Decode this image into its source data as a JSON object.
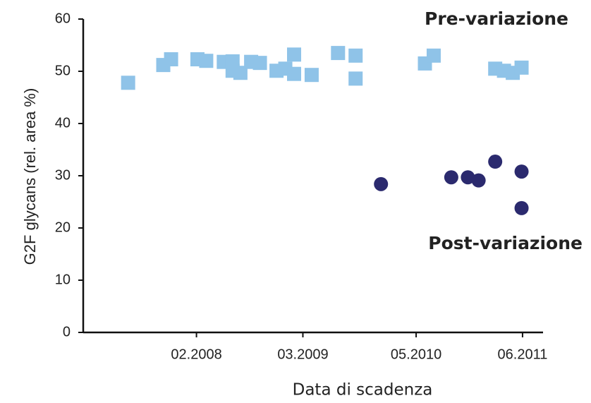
{
  "chart_data": {
    "type": "scatter",
    "x_label": "Data di scadenza",
    "y_label": "G2F glycans (rel. area %)",
    "xlim": [
      2006.92,
      2011.63
    ],
    "ylim": [
      0,
      60
    ],
    "xticks": [
      {
        "value": 2008.08,
        "label": "02.2008"
      },
      {
        "value": 2009.17,
        "label": "03.2009"
      },
      {
        "value": 2010.33,
        "label": "05.2010"
      },
      {
        "value": 2011.42,
        "label": "06.2011"
      }
    ],
    "yticks": [
      0,
      10,
      20,
      30,
      40,
      50,
      60
    ],
    "series": [
      {
        "name": "Pre-variazione",
        "color": "#8fc3e8",
        "marker": "square",
        "label_color": "#1f7bc4",
        "x": [
          2007.38,
          2007.74,
          2007.82,
          2008.09,
          2008.18,
          2008.36,
          2008.45,
          2008.45,
          2008.53,
          2008.64,
          2008.73,
          2008.9,
          2008.99,
          2009.08,
          2009.08,
          2009.26,
          2009.53,
          2009.71,
          2009.71,
          2010.42,
          2010.51,
          2011.14,
          2011.23,
          2011.32,
          2011.41
        ],
        "values": [
          47.8,
          51.2,
          52.3,
          52.3,
          52.0,
          51.8,
          51.9,
          50.1,
          49.7,
          51.8,
          51.6,
          50.1,
          50.5,
          53.2,
          49.5,
          49.3,
          53.5,
          53.0,
          48.6,
          51.5,
          53.0,
          50.5,
          50.1,
          49.7,
          50.7
        ]
      },
      {
        "name": "Post-variazione",
        "color": "#2b2a6e",
        "marker": "circle",
        "label_color": "#1f2f6b",
        "x": [
          2009.97,
          2010.69,
          2010.86,
          2010.97,
          2011.14,
          2011.41,
          2011.41
        ],
        "values": [
          28.4,
          29.7,
          29.7,
          29.1,
          32.7,
          30.8,
          23.8
        ]
      }
    ]
  }
}
